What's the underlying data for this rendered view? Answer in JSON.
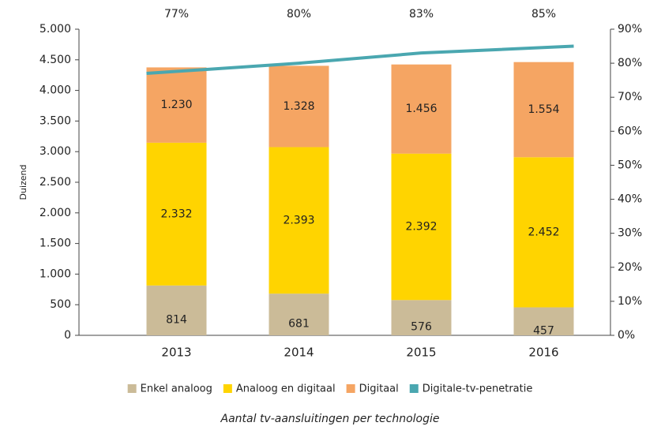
{
  "chart_data": {
    "type": "bar",
    "caption": "Aantal tv-aansluitingen per technologie",
    "y_label": "Duizend",
    "stacked": true,
    "categories": [
      "2013",
      "2014",
      "2015",
      "2016"
    ],
    "series": [
      {
        "name": "Enkel analoog",
        "color": "#cbbb98",
        "values": [
          814,
          681,
          576,
          457
        ]
      },
      {
        "name": "Analoog en digitaal",
        "color": "#ffd400",
        "values": [
          2332,
          2393,
          2392,
          2452
        ],
        "value_labels": [
          "2.332",
          "2.393",
          "2.392",
          "2.452"
        ]
      },
      {
        "name": "Digitaal",
        "color": "#f5a563",
        "values": [
          1230,
          1328,
          1456,
          1554
        ],
        "value_labels": [
          "1.230",
          "1.328",
          "1.456",
          "1.554"
        ]
      },
      {
        "name": "Digitale-tv-penetratie",
        "type": "line",
        "axis": "y2",
        "color": "#4aa7b0",
        "values": [
          77,
          80,
          83,
          85
        ],
        "value_labels": [
          "77%",
          "80%",
          "83%",
          "85%"
        ]
      }
    ],
    "ylim": [
      0,
      5000
    ],
    "yticks": [
      0,
      500,
      {
        "value": 1000,
        "label": "1.000"
      },
      {
        "value": 1500,
        "label": "1.500"
      },
      {
        "value": 2000,
        "label": "2.000"
      },
      {
        "value": 2500,
        "label": "2.500"
      },
      {
        "value": 3000,
        "label": "3.000"
      },
      {
        "value": 3500,
        "label": "3.500"
      },
      {
        "value": 4000,
        "label": "4.000"
      },
      {
        "value": 4500,
        "label": "4.500"
      },
      {
        "value": 5000,
        "label": "5.000"
      }
    ],
    "y2lim": [
      0,
      90
    ],
    "y2ticks": [
      {
        "value": 0,
        "label": "0%"
      },
      {
        "value": 10,
        "label": "10%"
      },
      {
        "value": 20,
        "label": "20%"
      },
      {
        "value": 30,
        "label": "30%"
      },
      {
        "value": 40,
        "label": "40%"
      },
      {
        "value": 50,
        "label": "50%"
      },
      {
        "value": 60,
        "label": "60%"
      },
      {
        "value": 70,
        "label": "70%"
      },
      {
        "value": 80,
        "label": "80%"
      },
      {
        "value": 90,
        "label": "90%"
      }
    ],
    "legend": "bottom",
    "grid": false
  }
}
